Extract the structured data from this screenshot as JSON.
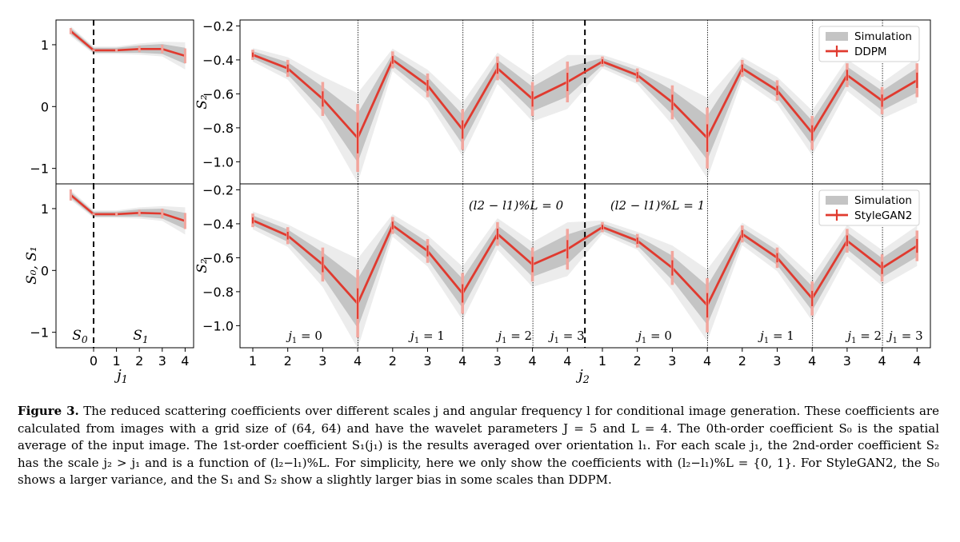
{
  "chart_data": [
    {
      "id": "s0s1_top",
      "type": "line",
      "x_ticks": [
        "0",
        "1",
        "2",
        "3",
        "4"
      ],
      "y_ticks": [
        "1",
        "0",
        "−1"
      ],
      "ylim": [
        -1.25,
        1.45
      ],
      "s0": {
        "value": 1.22,
        "err": 0.05
      },
      "s1": {
        "x": [
          0,
          1,
          2,
          3,
          4
        ],
        "y": [
          0.91,
          0.91,
          0.93,
          0.93,
          0.82
        ],
        "err": [
          0.02,
          0.02,
          0.05,
          0.07,
          0.12
        ],
        "sim_inner": [
          0.04,
          0.04,
          0.06,
          0.08,
          0.13
        ],
        "sim_outer": [
          0.06,
          0.06,
          0.09,
          0.12,
          0.22
        ]
      }
    },
    {
      "id": "s0s1_bottom",
      "type": "line",
      "x_ticks": [
        "0",
        "1",
        "2",
        "3",
        "4"
      ],
      "y_ticks": [
        "1",
        "0",
        "−1"
      ],
      "ylabel": "S0, S1",
      "xlabel": "j1",
      "region_labels": [
        "S0",
        "S1"
      ],
      "ylim": [
        -1.25,
        1.45
      ],
      "s0": {
        "value": 1.22,
        "err": 0.09
      },
      "s1": {
        "x": [
          0,
          1,
          2,
          3,
          4
        ],
        "y": [
          0.91,
          0.91,
          0.93,
          0.92,
          0.8
        ],
        "err": [
          0.02,
          0.03,
          0.05,
          0.08,
          0.13
        ],
        "sim_inner": [
          0.04,
          0.04,
          0.06,
          0.08,
          0.13
        ],
        "sim_outer": [
          0.06,
          0.06,
          0.09,
          0.12,
          0.22
        ]
      }
    },
    {
      "id": "s2_ddpm",
      "type": "line",
      "ylabel": "S2",
      "y_ticks": [
        "−0.2",
        "−0.4",
        "−0.6",
        "−0.8",
        "−1.0"
      ],
      "ylim": [
        -1.12,
        -0.17
      ],
      "legend": {
        "position": "top-right",
        "band": "Simulation",
        "line": "DDPM"
      },
      "segments": [
        {
          "label": "j1 = 0",
          "x": [
            1,
            2,
            3,
            4
          ],
          "y": [
            -0.37,
            -0.45,
            -0.63,
            -0.86
          ],
          "err": [
            0.03,
            0.05,
            0.1,
            0.2
          ]
        },
        {
          "label": "j1 = 1",
          "x": [
            2,
            3,
            4
          ],
          "y": [
            -0.4,
            -0.55,
            -0.81
          ],
          "err": [
            0.05,
            0.07,
            0.12
          ]
        },
        {
          "label": "j1 = 2",
          "x": [
            3,
            4
          ],
          "y": [
            -0.45,
            -0.63
          ],
          "err": [
            0.07,
            0.1
          ]
        },
        {
          "label": "j1 = 3",
          "x": [
            4
          ],
          "y": [
            -0.53
          ],
          "err": [
            0.12
          ]
        },
        {
          "label": "j1 = 0",
          "x": [
            1,
            2,
            3,
            4
          ],
          "y": [
            -0.41,
            -0.49,
            -0.65,
            -0.86
          ],
          "err": [
            0.03,
            0.04,
            0.1,
            0.18
          ]
        },
        {
          "label": "j1 = 1",
          "x": [
            2,
            3,
            4
          ],
          "y": [
            -0.45,
            -0.58,
            -0.83
          ],
          "err": [
            0.05,
            0.06,
            0.1
          ]
        },
        {
          "label": "j1 = 2",
          "x": [
            3,
            4
          ],
          "y": [
            -0.49,
            -0.64
          ],
          "err": [
            0.07,
            0.08
          ]
        },
        {
          "label": "j1 = 3",
          "x": [
            4
          ],
          "y": [
            -0.52
          ],
          "err": [
            0.1
          ]
        }
      ]
    },
    {
      "id": "s2_stylegan2",
      "type": "line",
      "ylabel": "S2",
      "xlabel": "j2",
      "y_ticks": [
        "−0.2",
        "−0.4",
        "−0.6",
        "−0.8",
        "−1.0"
      ],
      "ylim": [
        -1.12,
        -0.17
      ],
      "legend": {
        "position": "top-right",
        "band": "Simulation",
        "line": "StyleGAN2"
      },
      "group_labels": [
        "(l2 − l1)%L = 0",
        "(l2 − l1)%L = 1"
      ],
      "x_ticks": [
        "1",
        "2",
        "3",
        "4",
        "2",
        "3",
        "4",
        "3",
        "4",
        "4",
        "1",
        "2",
        "3",
        "4",
        "2",
        "3",
        "4",
        "3",
        "4",
        "4"
      ],
      "segments": [
        {
          "label": "j1 = 0",
          "x": [
            1,
            2,
            3,
            4
          ],
          "y": [
            -0.38,
            -0.47,
            -0.64,
            -0.87
          ],
          "err": [
            0.04,
            0.05,
            0.1,
            0.2
          ]
        },
        {
          "label": "j1 = 1",
          "x": [
            2,
            3,
            4
          ],
          "y": [
            -0.41,
            -0.56,
            -0.81
          ],
          "err": [
            0.05,
            0.07,
            0.12
          ]
        },
        {
          "label": "j1 = 2",
          "x": [
            3,
            4
          ],
          "y": [
            -0.46,
            -0.64
          ],
          "err": [
            0.07,
            0.1
          ]
        },
        {
          "label": "j1 = 3",
          "x": [
            4
          ],
          "y": [
            -0.55
          ],
          "err": [
            0.12
          ]
        },
        {
          "label": "j1 = 0",
          "x": [
            1,
            2,
            3,
            4
          ],
          "y": [
            -0.42,
            -0.5,
            -0.66,
            -0.88
          ],
          "err": [
            0.03,
            0.04,
            0.1,
            0.16
          ]
        },
        {
          "label": "j1 = 1",
          "x": [
            2,
            3,
            4
          ],
          "y": [
            -0.46,
            -0.6,
            -0.84
          ],
          "err": [
            0.05,
            0.06,
            0.1
          ]
        },
        {
          "label": "j1 = 2",
          "x": [
            3,
            4
          ],
          "y": [
            -0.5,
            -0.66
          ],
          "err": [
            0.07,
            0.08
          ]
        },
        {
          "label": "j1 = 3",
          "x": [
            4
          ],
          "y": [
            -0.53
          ],
          "err": [
            0.09
          ]
        }
      ]
    }
  ],
  "caption": {
    "label": "Figure 3.",
    "text": "The reduced scattering coefficients over different scales j and angular frequency l for conditional image generation. These coefficients are calculated from images with a grid size of (64, 64) and have the wavelet parameters J = 5 and L = 4. The 0th-order coefficient S₀ is the spatial average of the input image. The 1st-order coefficient S₁(j₁) is the results averaged over orientation l₁. For each scale j₁, the 2nd-order coefficient S₂ has the scale j₂ > j₁ and is a function of (l₂−l₁)%L. For simplicity, here we only show the coefficients with (l₂−l₁)%L = {0, 1}. For StyleGAN2, the S₀ shows a larger variance, and the S₁ and S₂ show a slightly larger bias in some scales than DDPM."
  },
  "colors": {
    "line": "#e03a2f",
    "err": "#f2a59d",
    "band_outer": "#ececec",
    "band_inner": "#c4c4c4",
    "center": "#8a8a8a"
  }
}
